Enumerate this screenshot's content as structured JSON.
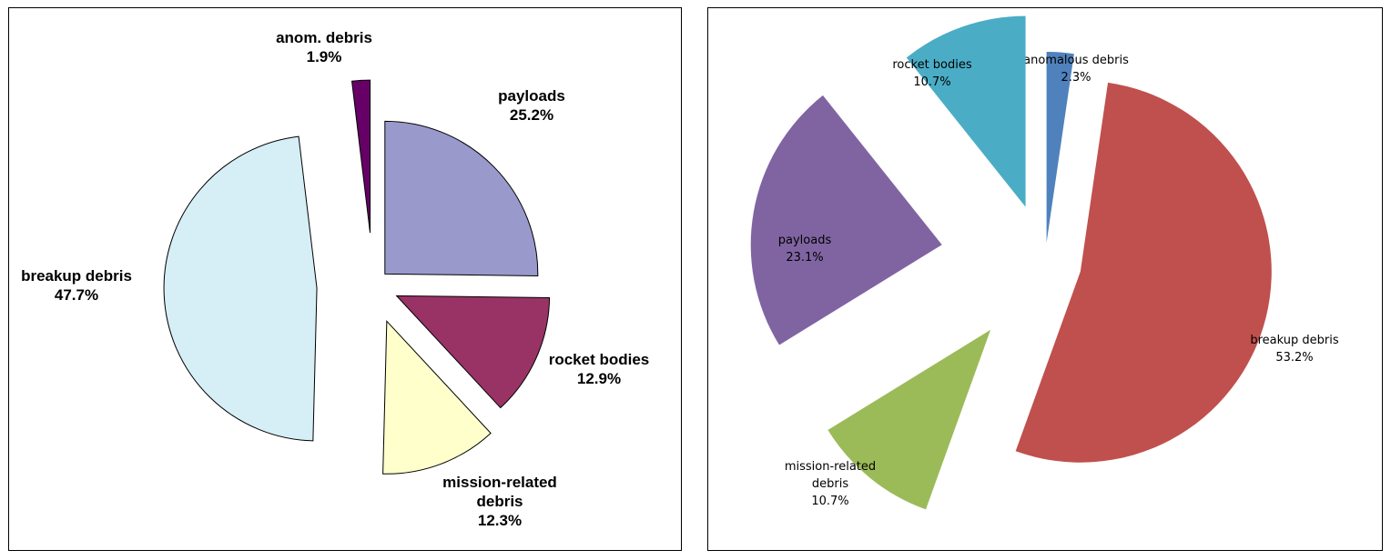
{
  "chart_data": [
    {
      "type": "pie",
      "exploded": true,
      "slices": [
        {
          "label_lines": [
            "payloads"
          ],
          "value_label": "25.2%",
          "value": 25.2,
          "color": "#9999cc"
        },
        {
          "label_lines": [
            "rocket bodies"
          ],
          "value_label": "12.9%",
          "value": 12.9,
          "color": "#993366"
        },
        {
          "label_lines": [
            "mission-related",
            "debris"
          ],
          "value_label": "12.3%",
          "value": 12.3,
          "color": "#ffffcc"
        },
        {
          "label_lines": [
            "breakup debris"
          ],
          "value_label": "47.7%",
          "value": 47.7,
          "color": "#d6eef5"
        },
        {
          "label_lines": [
            "anom. debris"
          ],
          "value_label": "1.9%",
          "value": 1.9,
          "color": "#660066"
        }
      ]
    },
    {
      "type": "pie",
      "exploded": true,
      "slices": [
        {
          "label_lines": [
            "anomalous debris"
          ],
          "value_label": "2.3%",
          "value": 2.3,
          "color": "#4f81bd"
        },
        {
          "label_lines": [
            "breakup debris"
          ],
          "value_label": "53.2%",
          "value": 53.2,
          "color": "#c0504d"
        },
        {
          "label_lines": [
            "mission-related",
            "debris"
          ],
          "value_label": "10.7%",
          "value": 10.7,
          "color": "#9bbb59"
        },
        {
          "label_lines": [
            "payloads"
          ],
          "value_label": "23.1%",
          "value": 23.1,
          "color": "#8064a2"
        },
        {
          "label_lines": [
            "rocket bodies"
          ],
          "value_label": "10.7%",
          "value": 10.7,
          "color": "#4bacc6"
        }
      ]
    }
  ]
}
